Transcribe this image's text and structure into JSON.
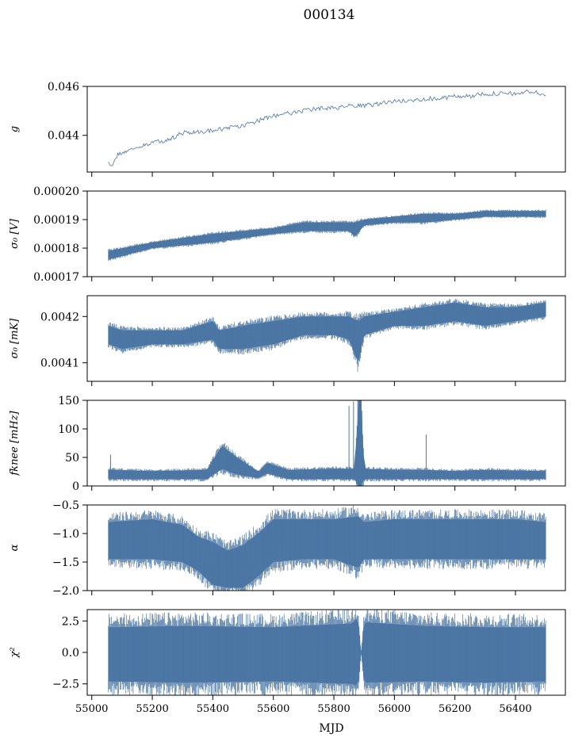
{
  "figure": {
    "title": "000134",
    "xlabel": "MJD"
  },
  "colors": {
    "series": "#4c76a4",
    "axes": "#000000",
    "background": "#ffffff"
  },
  "chart_data": [
    {
      "type": "line",
      "ylabel": "g",
      "xlim": [
        54985,
        56565
      ],
      "ylim": [
        0.0425,
        0.046
      ],
      "xticks": [
        55000,
        55200,
        55400,
        55600,
        55800,
        56000,
        56200,
        56400
      ],
      "yticks": [
        0.044,
        0.046
      ],
      "ytick_labels": [
        "0.044",
        "0.046"
      ],
      "grid": false,
      "style": "thin-line",
      "series": [
        {
          "x": [
            55055,
            55070,
            55085,
            55100,
            55150,
            55200,
            55250,
            55300,
            55350,
            55400,
            55450,
            55500,
            55550,
            55600,
            55650,
            55700,
            55750,
            55800,
            55850,
            55900,
            55950,
            56000,
            56050,
            56100,
            56150,
            56200,
            56250,
            56300,
            56350,
            56400,
            56450,
            56500
          ],
          "y": [
            0.04285,
            0.0428,
            0.0432,
            0.0433,
            0.0435,
            0.0437,
            0.0438,
            0.0441,
            0.04415,
            0.0442,
            0.0443,
            0.0444,
            0.0446,
            0.0448,
            0.0449,
            0.045,
            0.0451,
            0.0451,
            0.0452,
            0.0452,
            0.0453,
            0.0454,
            0.0454,
            0.0455,
            0.0455,
            0.0456,
            0.0456,
            0.0457,
            0.0457,
            0.0457,
            0.0458,
            0.04565
          ]
        }
      ]
    },
    {
      "type": "area",
      "ylabel": "σ₀ [V]",
      "xlim": [
        54985,
        56565
      ],
      "ylim": [
        0.00017,
        0.0002
      ],
      "xticks": [
        55000,
        55200,
        55400,
        55600,
        55800,
        56000,
        56200,
        56400
      ],
      "yticks": [
        0.00017,
        0.00018,
        0.00019,
        0.0002
      ],
      "ytick_labels": [
        "0.00017",
        "0.00018",
        "0.00019",
        "0.00020"
      ],
      "grid": false,
      "style": "band",
      "series": [
        {
          "x": [
            55055,
            55200,
            55400,
            55600,
            55700,
            55800,
            55850,
            55870,
            55900,
            56000,
            56100,
            56200,
            56300,
            56400,
            56500
          ],
          "lower": [
            0.000176,
            0.00018,
            0.000182,
            0.000185,
            0.000186,
            0.000186,
            0.000186,
            0.000184,
            0.000188,
            0.000189,
            0.000189,
            0.00019,
            0.000191,
            0.000191,
            0.000191
          ],
          "upper": [
            0.000179,
            0.000182,
            0.000185,
            0.000187,
            0.000189,
            0.000189,
            0.000189,
            0.000189,
            0.00019,
            0.000191,
            0.000192,
            0.000192,
            0.000193,
            0.000193,
            0.000193
          ]
        }
      ]
    },
    {
      "type": "area",
      "ylabel": "σ₀ [mK]",
      "xlim": [
        54985,
        56565
      ],
      "ylim": [
        0.00406,
        0.004245
      ],
      "xticks": [
        55000,
        55200,
        55400,
        55600,
        55800,
        56000,
        56200,
        56400
      ],
      "yticks": [
        0.0041,
        0.0042
      ],
      "ytick_labels": [
        "0.0041",
        "0.0042"
      ],
      "grid": false,
      "style": "band",
      "series": [
        {
          "x": [
            55055,
            55100,
            55200,
            55300,
            55400,
            55420,
            55500,
            55600,
            55700,
            55800,
            55850,
            55880,
            55900,
            56000,
            56100,
            56200,
            56300,
            56400,
            56500
          ],
          "lower": [
            0.00414,
            0.00413,
            0.00414,
            0.00414,
            0.00415,
            0.00413,
            0.00413,
            0.00414,
            0.00416,
            0.00416,
            0.00415,
            0.0041,
            0.00416,
            0.00418,
            0.00418,
            0.00419,
            0.00418,
            0.00419,
            0.0042
          ],
          "upper": [
            0.00418,
            0.00417,
            0.00417,
            0.00417,
            0.00419,
            0.00417,
            0.00418,
            0.00419,
            0.0042,
            0.0042,
            0.0042,
            0.00419,
            0.0042,
            0.00421,
            0.00422,
            0.00423,
            0.00422,
            0.00422,
            0.00423
          ]
        }
      ]
    },
    {
      "type": "area",
      "ylabel": "fknee [mHz]",
      "xlim": [
        54985,
        56565
      ],
      "ylim": [
        0,
        150
      ],
      "xticks": [
        55000,
        55200,
        55400,
        55600,
        55800,
        56000,
        56200,
        56400
      ],
      "yticks": [
        0,
        50,
        100,
        150
      ],
      "ytick_labels": [
        "0",
        "50",
        "100",
        "150"
      ],
      "grid": false,
      "style": "band",
      "series": [
        {
          "x": [
            55055,
            55200,
            55380,
            55430,
            55480,
            55550,
            55580,
            55650,
            55800,
            55870,
            55880,
            55890,
            55900,
            56000,
            56100,
            56200,
            56300,
            56400,
            56500
          ],
          "lower": [
            12,
            12,
            12,
            30,
            20,
            14,
            22,
            12,
            12,
            12,
            0,
            0,
            12,
            12,
            12,
            12,
            12,
            12,
            12
          ],
          "upper": [
            28,
            26,
            28,
            70,
            50,
            25,
            40,
            28,
            30,
            30,
            150,
            150,
            30,
            28,
            28,
            26,
            28,
            27,
            26
          ]
        }
      ],
      "spikes": [
        {
          "x": 55850,
          "y": 140
        },
        {
          "x": 55865,
          "y": 148
        },
        {
          "x": 56105,
          "y": 90
        },
        {
          "x": 55062,
          "y": 55
        }
      ]
    },
    {
      "type": "area",
      "ylabel": "α",
      "xlim": [
        54985,
        56565
      ],
      "ylim": [
        -2.0,
        -0.5
      ],
      "xticks": [
        55000,
        55200,
        55400,
        55600,
        55800,
        56000,
        56200,
        56400
      ],
      "yticks": [
        -2.0,
        -1.5,
        -1.0,
        -0.5
      ],
      "ytick_labels": [
        "−2.0",
        "−1.5",
        "−1.0",
        "−0.5"
      ],
      "grid": false,
      "style": "band",
      "series": [
        {
          "x": [
            55055,
            55200,
            55300,
            55350,
            55400,
            55450,
            55500,
            55550,
            55600,
            55700,
            55800,
            55880,
            55900,
            56000,
            56200,
            56400,
            56500
          ],
          "lower": [
            -1.45,
            -1.45,
            -1.5,
            -1.65,
            -1.9,
            -1.95,
            -1.95,
            -1.75,
            -1.5,
            -1.45,
            -1.45,
            -1.6,
            -1.45,
            -1.45,
            -1.45,
            -1.45,
            -1.45
          ],
          "upper": [
            -0.8,
            -0.75,
            -0.85,
            -1.05,
            -1.15,
            -1.3,
            -1.2,
            -1.0,
            -0.75,
            -0.75,
            -0.75,
            -0.7,
            -0.8,
            -0.75,
            -0.75,
            -0.75,
            -0.8
          ]
        }
      ]
    },
    {
      "type": "area",
      "ylabel": "χ²",
      "xlim": [
        54985,
        56565
      ],
      "ylim": [
        -3.4,
        3.4
      ],
      "xticks": [
        55000,
        55200,
        55400,
        55600,
        55800,
        56000,
        56200,
        56400
      ],
      "xtick_labels": [
        "55000",
        "55200",
        "55400",
        "55600",
        "55800",
        "56000",
        "56200",
        "56400"
      ],
      "yticks": [
        -2.5,
        0.0,
        2.5
      ],
      "ytick_labels": [
        "−2.5",
        "0.0",
        "2.5"
      ],
      "grid": false,
      "style": "band",
      "series": [
        {
          "x": [
            55055,
            55300,
            55600,
            55860,
            55880,
            55890,
            55900,
            56100,
            56300,
            56500
          ],
          "lower": [
            -2.3,
            -2.4,
            -2.3,
            -2.5,
            -2.7,
            0.0,
            -2.4,
            -2.3,
            -2.4,
            -2.3
          ],
          "upper": [
            2.0,
            2.1,
            2.0,
            2.3,
            2.8,
            0.0,
            2.4,
            2.1,
            2.0,
            2.0
          ]
        }
      ]
    }
  ]
}
